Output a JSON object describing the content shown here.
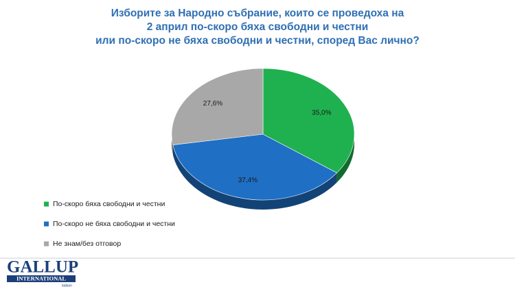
{
  "chart_data": {
    "type": "pie",
    "title": [
      "Изборите за Народно събрание, които се проведоха на",
      "2 април по-скоро бяха свободни и честни",
      "или по-скоро не бяха свободни и честни, според Вас лично?"
    ],
    "categories": [
      "По-скоро бяха свободни и честни",
      "По-скоро не бяха свободни и честни",
      "Не знам/без отговор"
    ],
    "values": [
      35.0,
      37.4,
      27.6
    ],
    "value_labels": [
      "35,0%",
      "37,4%",
      "27,6%"
    ],
    "colors": [
      "#1fb14f",
      "#1f6fc5",
      "#a8a8a8"
    ],
    "legend": "bottom-left"
  },
  "logo": {
    "name": "GALLUP",
    "sub": "INTERNATIONAL",
    "region": "balkan"
  }
}
